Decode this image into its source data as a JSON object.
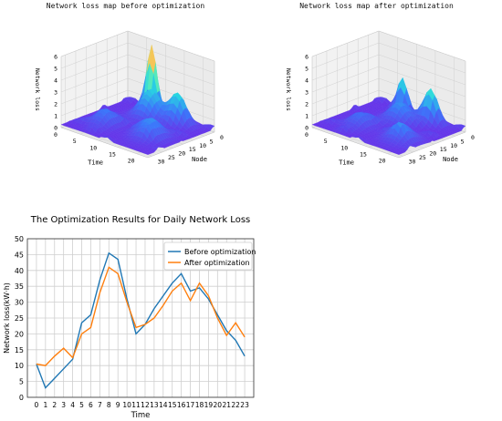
{
  "chart_data": [
    {
      "type": "surface3d",
      "title": "Network loss map before optimization",
      "xlabel": "Time",
      "ylabel": "Node",
      "zlabel": "Network loss",
      "x_ticks": [
        "0",
        "5",
        "10",
        "15",
        "20"
      ],
      "y_ticks": [
        "0",
        "5",
        "10",
        "15",
        "20",
        "25",
        "30"
      ],
      "z_ticks": [
        "0",
        "1",
        "2",
        "3",
        "4",
        "5",
        "6"
      ],
      "xlim": [
        0,
        23
      ],
      "ylim": [
        0,
        32
      ],
      "zlim": [
        0,
        6
      ],
      "colormap": "rainbow"
    },
    {
      "type": "surface3d",
      "title": "Network loss map after optimization",
      "xlabel": "Time",
      "ylabel": "Node",
      "zlabel": "Network loss",
      "x_ticks": [
        "0",
        "5",
        "10",
        "15",
        "20"
      ],
      "y_ticks": [
        "0",
        "5",
        "10",
        "15",
        "20",
        "25",
        "30"
      ],
      "z_ticks": [
        "0",
        "1",
        "2",
        "3",
        "4",
        "5",
        "6"
      ],
      "xlim": [
        0,
        23
      ],
      "ylim": [
        0,
        32
      ],
      "zlim": [
        0,
        6
      ],
      "colormap": "rainbow"
    },
    {
      "type": "line",
      "title": "The Optimization Results for Daily Network Loss",
      "xlabel": "Time",
      "ylabel": "Network loss(kW·h)",
      "x": [
        0,
        1,
        2,
        3,
        4,
        5,
        6,
        7,
        8,
        9,
        10,
        11,
        12,
        13,
        14,
        15,
        16,
        17,
        18,
        19,
        20,
        21,
        22,
        23
      ],
      "ylim": [
        0,
        50
      ],
      "xlim": [
        -1,
        24
      ],
      "y_ticks": [
        "0",
        "5",
        "10",
        "15",
        "20",
        "25",
        "30",
        "35",
        "40",
        "45",
        "50"
      ],
      "x_ticks": [
        "0",
        "1",
        "2",
        "3",
        "4",
        "5",
        "6",
        "7",
        "8",
        "9",
        "10",
        "11",
        "12",
        "13",
        "14",
        "15",
        "16",
        "17",
        "18",
        "19",
        "20",
        "21",
        "22",
        "23"
      ],
      "grid": true,
      "legend_position": "top-right",
      "series": [
        {
          "name": "Before optimization",
          "color": "#1f77b4",
          "values": [
            10.5,
            3,
            6,
            9,
            12,
            23.5,
            26,
            37,
            45.5,
            43.5,
            31,
            20,
            23,
            28,
            32,
            36,
            39,
            33.5,
            34.5,
            31,
            26,
            21,
            18,
            13
          ]
        },
        {
          "name": "After optimization",
          "color": "#ff7f0e",
          "values": [
            10.5,
            10,
            13,
            15.5,
            12.5,
            20,
            22,
            33,
            41,
            39,
            30,
            22,
            23,
            25,
            29,
            33.5,
            36,
            30.5,
            36,
            32,
            25,
            19.5,
            23.5,
            19
          ]
        }
      ]
    }
  ]
}
